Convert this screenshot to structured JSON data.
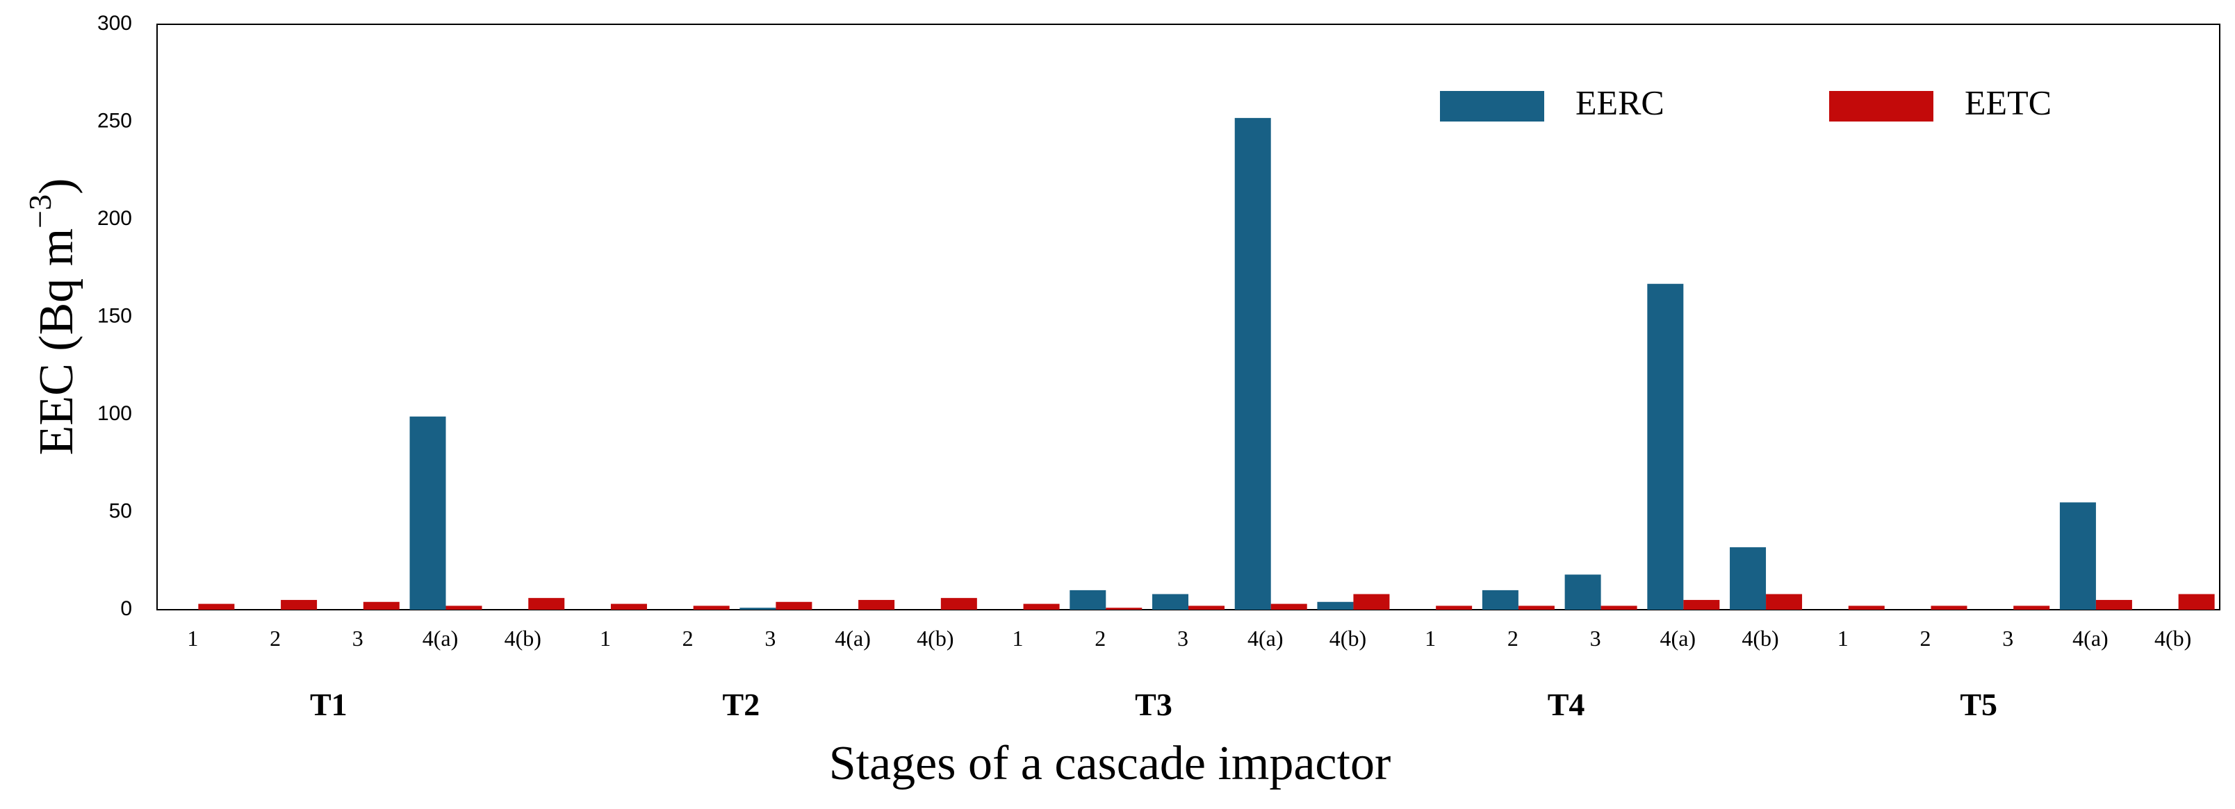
{
  "chart_data": {
    "type": "bar",
    "title": "",
    "ylabel": "EEC (Bq m",
    "ylabel_superscript": "−3",
    "ylabel_close": ")",
    "xlabel": "Stages of a cascade impactor",
    "ylim": [
      0,
      300
    ],
    "yticks": [
      0,
      50,
      100,
      150,
      200,
      250,
      300
    ],
    "legend_position": "top-right",
    "groups": [
      "T1",
      "T2",
      "T3",
      "T4",
      "T5"
    ],
    "stages": [
      "1",
      "2",
      "3",
      "4(a)",
      "4(b)"
    ],
    "colors": {
      "EERC": "#186085",
      "EETC": "#c30a0a"
    },
    "series": [
      {
        "name": "EERC",
        "values": [
          [
            0,
            0,
            0,
            99,
            0
          ],
          [
            0,
            0,
            1,
            0,
            0
          ],
          [
            0,
            10,
            8,
            252,
            4
          ],
          [
            0,
            10,
            18,
            167,
            32
          ],
          [
            0,
            0,
            0,
            55,
            0
          ]
        ]
      },
      {
        "name": "EETC",
        "values": [
          [
            3,
            5,
            4,
            2,
            6
          ],
          [
            3,
            2,
            4,
            5,
            6
          ],
          [
            3,
            1,
            2,
            3,
            8
          ],
          [
            2,
            2,
            2,
            5,
            8
          ],
          [
            2,
            2,
            2,
            5,
            8
          ]
        ]
      }
    ]
  }
}
